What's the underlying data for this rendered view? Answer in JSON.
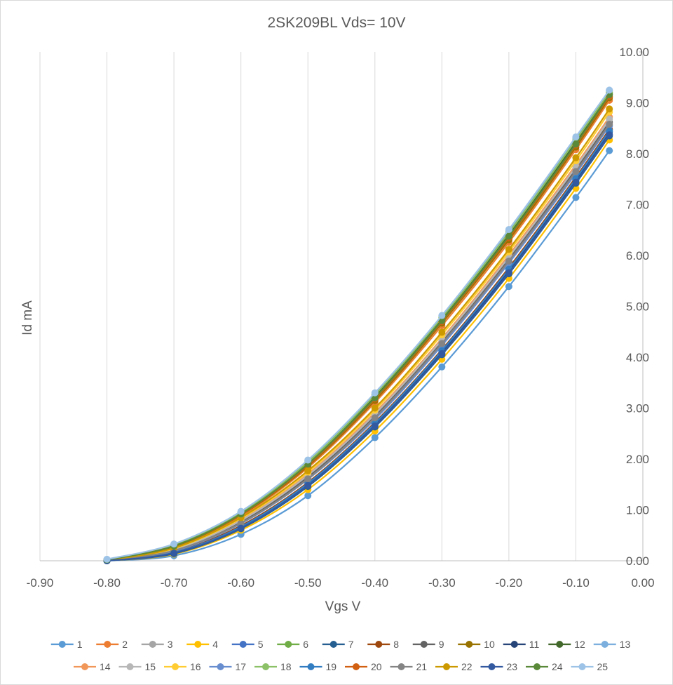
{
  "chart_data": {
    "type": "line",
    "title": "2SK209BL Vds= 10V",
    "xlabel": "Vgs V",
    "ylabel": "Id mA",
    "xlim": [
      -0.9,
      0.0
    ],
    "ylim": [
      0.0,
      10.0
    ],
    "x_ticks": [
      "-0.90",
      "-0.80",
      "-0.70",
      "-0.60",
      "-0.50",
      "-0.40",
      "-0.30",
      "-0.20",
      "-0.10",
      "0.00"
    ],
    "y_ticks": [
      "0.00",
      "1.00",
      "2.00",
      "3.00",
      "4.00",
      "5.00",
      "6.00",
      "7.00",
      "8.00",
      "9.00",
      "10.00"
    ],
    "grid": "vertical",
    "legend_position": "bottom",
    "x": [
      -0.8,
      -0.7,
      -0.6,
      -0.5,
      -0.4,
      -0.3,
      -0.2,
      -0.1,
      -0.05
    ],
    "series": [
      {
        "name": "1",
        "color": "#5B9BD5",
        "values": [
          0.0,
          0.1,
          0.52,
          1.28,
          2.42,
          3.81,
          5.39,
          7.14,
          8.06
        ]
      },
      {
        "name": "2",
        "color": "#ED7D31",
        "values": [
          0.01,
          0.27,
          0.88,
          1.83,
          3.11,
          4.62,
          6.26,
          8.08,
          9.05
        ]
      },
      {
        "name": "3",
        "color": "#A5A5A5",
        "values": [
          0.01,
          0.2,
          0.75,
          1.62,
          2.8,
          4.26,
          5.88,
          7.63,
          8.55
        ]
      },
      {
        "name": "4",
        "color": "#FFC000",
        "values": [
          0.0,
          0.13,
          0.6,
          1.4,
          2.55,
          3.96,
          5.55,
          7.32,
          8.27
        ]
      },
      {
        "name": "5",
        "color": "#4472C4",
        "values": [
          0.0,
          0.15,
          0.65,
          1.49,
          2.66,
          4.08,
          5.67,
          7.45,
          8.38
        ]
      },
      {
        "name": "6",
        "color": "#70AD47",
        "values": [
          0.02,
          0.3,
          0.93,
          1.91,
          3.21,
          4.73,
          6.39,
          8.21,
          9.17
        ]
      },
      {
        "name": "7",
        "color": "#255E91",
        "values": [
          0.0,
          0.14,
          0.63,
          1.46,
          2.63,
          4.05,
          5.64,
          7.42,
          8.35
        ]
      },
      {
        "name": "8",
        "color": "#9E480E",
        "values": [
          0.01,
          0.17,
          0.69,
          1.54,
          2.72,
          4.15,
          5.76,
          7.54,
          8.48
        ]
      },
      {
        "name": "9",
        "color": "#636363",
        "values": [
          0.01,
          0.21,
          0.77,
          1.65,
          2.85,
          4.3,
          5.93,
          7.69,
          8.62
        ]
      },
      {
        "name": "10",
        "color": "#997300",
        "values": [
          0.02,
          0.28,
          0.9,
          1.86,
          3.15,
          4.67,
          6.31,
          8.13,
          9.1
        ]
      },
      {
        "name": "11",
        "color": "#264478",
        "values": [
          0.0,
          0.16,
          0.66,
          1.51,
          2.69,
          4.11,
          5.71,
          7.49,
          8.43
        ]
      },
      {
        "name": "12",
        "color": "#43682B",
        "values": [
          0.02,
          0.3,
          0.94,
          1.92,
          3.23,
          4.75,
          6.42,
          8.23,
          9.19
        ]
      },
      {
        "name": "13",
        "color": "#7CAFDD",
        "values": [
          0.02,
          0.32,
          0.96,
          1.97,
          3.28,
          4.8,
          6.49,
          8.31,
          9.24
        ]
      },
      {
        "name": "14",
        "color": "#F1975A",
        "values": [
          0.01,
          0.23,
          0.8,
          1.7,
          2.91,
          4.37,
          6.01,
          7.78,
          8.72
        ]
      },
      {
        "name": "15",
        "color": "#B7B7B7",
        "values": [
          0.01,
          0.22,
          0.79,
          1.68,
          2.88,
          4.34,
          5.97,
          7.74,
          8.68
        ]
      },
      {
        "name": "16",
        "color": "#FFCD33",
        "values": [
          0.01,
          0.24,
          0.83,
          1.74,
          2.96,
          4.44,
          6.07,
          7.86,
          8.82
        ]
      },
      {
        "name": "17",
        "color": "#698ED0",
        "values": [
          0.01,
          0.19,
          0.73,
          1.6,
          2.78,
          4.23,
          5.85,
          7.61,
          8.55
        ]
      },
      {
        "name": "18",
        "color": "#8CC168",
        "values": [
          0.02,
          0.31,
          0.95,
          1.94,
          3.26,
          4.78,
          6.45,
          8.27,
          9.21
        ]
      },
      {
        "name": "19",
        "color": "#327DC2",
        "values": [
          0.0,
          0.16,
          0.67,
          1.52,
          2.7,
          4.13,
          5.73,
          7.51,
          8.45
        ]
      },
      {
        "name": "20",
        "color": "#D26012",
        "values": [
          0.02,
          0.29,
          0.91,
          1.88,
          3.18,
          4.7,
          6.35,
          8.17,
          9.13
        ]
      },
      {
        "name": "21",
        "color": "#848484",
        "values": [
          0.01,
          0.2,
          0.74,
          1.61,
          2.81,
          4.27,
          5.89,
          7.65,
          8.58
        ]
      },
      {
        "name": "22",
        "color": "#CC9A00",
        "values": [
          0.01,
          0.25,
          0.85,
          1.77,
          3.0,
          4.49,
          6.12,
          7.92,
          8.88
        ]
      },
      {
        "name": "23",
        "color": "#335AA1",
        "values": [
          0.0,
          0.15,
          0.64,
          1.48,
          2.65,
          4.07,
          5.66,
          7.44,
          8.37
        ]
      },
      {
        "name": "24",
        "color": "#5A8A39",
        "values": [
          0.02,
          0.29,
          0.92,
          1.9,
          3.2,
          4.72,
          6.38,
          8.19,
          9.16
        ]
      },
      {
        "name": "25",
        "color": "#9DC3E6",
        "values": [
          0.03,
          0.33,
          0.97,
          1.98,
          3.3,
          4.82,
          6.51,
          8.33,
          9.25
        ]
      }
    ]
  }
}
